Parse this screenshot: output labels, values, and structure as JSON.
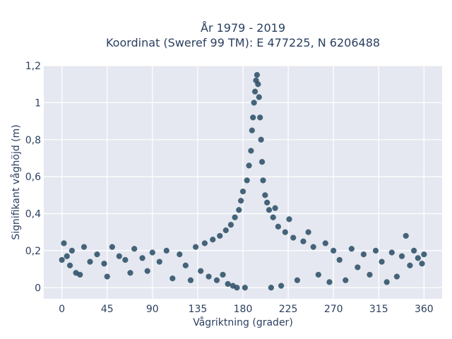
{
  "chart_data": {
    "type": "scatter",
    "title": "År 1979 - 2019",
    "subtitle": "Koordinat (Sweref 99 TM): E 477225, N 6206488",
    "xlabel": "Vågriktning (grader)",
    "ylabel": "Signifikant våghöjd (m)",
    "xlim": [
      -18,
      378
    ],
    "ylim": [
      -0.06,
      1.2
    ],
    "x_ticks": [
      0,
      45,
      90,
      135,
      180,
      225,
      270,
      315,
      360
    ],
    "y_ticks": [
      0,
      0.2,
      0.4,
      0.6,
      0.8,
      1,
      1.2
    ],
    "y_tick_labels": [
      "0",
      "0,2",
      "0,4",
      "0,6",
      "0,8",
      "1",
      "1,2"
    ],
    "grid": true,
    "legend": "none",
    "marker_color": "#2e5068",
    "plot_background": "#e5e8f0",
    "grid_color": "#ffffff",
    "series": [
      {
        "values": [
          {
            "x": 0,
            "y": 0.15
          },
          {
            "x": 2,
            "y": 0.24
          },
          {
            "x": 5,
            "y": 0.17
          },
          {
            "x": 8,
            "y": 0.12
          },
          {
            "x": 10,
            "y": 0.2
          },
          {
            "x": 14,
            "y": 0.08
          },
          {
            "x": 18,
            "y": 0.07
          },
          {
            "x": 22,
            "y": 0.22
          },
          {
            "x": 28,
            "y": 0.14
          },
          {
            "x": 35,
            "y": 0.18
          },
          {
            "x": 42,
            "y": 0.13
          },
          {
            "x": 45,
            "y": 0.06
          },
          {
            "x": 50,
            "y": 0.22
          },
          {
            "x": 57,
            "y": 0.17
          },
          {
            "x": 63,
            "y": 0.15
          },
          {
            "x": 68,
            "y": 0.08
          },
          {
            "x": 72,
            "y": 0.21
          },
          {
            "x": 80,
            "y": 0.16
          },
          {
            "x": 85,
            "y": 0.09
          },
          {
            "x": 90,
            "y": 0.19
          },
          {
            "x": 97,
            "y": 0.14
          },
          {
            "x": 104,
            "y": 0.2
          },
          {
            "x": 110,
            "y": 0.05
          },
          {
            "x": 117,
            "y": 0.18
          },
          {
            "x": 123,
            "y": 0.12
          },
          {
            "x": 128,
            "y": 0.04
          },
          {
            "x": 133,
            "y": 0.22
          },
          {
            "x": 138,
            "y": 0.09
          },
          {
            "x": 142,
            "y": 0.24
          },
          {
            "x": 146,
            "y": 0.06
          },
          {
            "x": 150,
            "y": 0.26
          },
          {
            "x": 154,
            "y": 0.04
          },
          {
            "x": 157,
            "y": 0.28
          },
          {
            "x": 160,
            "y": 0.07
          },
          {
            "x": 163,
            "y": 0.31
          },
          {
            "x": 165,
            "y": 0.02
          },
          {
            "x": 168,
            "y": 0.34
          },
          {
            "x": 170,
            "y": 0.01
          },
          {
            "x": 172,
            "y": 0.38
          },
          {
            "x": 174,
            "y": 0.0
          },
          {
            "x": 176,
            "y": 0.42
          },
          {
            "x": 178,
            "y": 0.47
          },
          {
            "x": 180,
            "y": 0.52
          },
          {
            "x": 182,
            "y": 0.0
          },
          {
            "x": 184,
            "y": 0.58
          },
          {
            "x": 186,
            "y": 0.66
          },
          {
            "x": 188,
            "y": 0.74
          },
          {
            "x": 189,
            "y": 0.85
          },
          {
            "x": 190,
            "y": 0.92
          },
          {
            "x": 191,
            "y": 1.0
          },
          {
            "x": 192,
            "y": 1.06
          },
          {
            "x": 193,
            "y": 1.12
          },
          {
            "x": 194,
            "y": 1.15
          },
          {
            "x": 195,
            "y": 1.1
          },
          {
            "x": 196,
            "y": 1.03
          },
          {
            "x": 197,
            "y": 0.92
          },
          {
            "x": 198,
            "y": 0.8
          },
          {
            "x": 199,
            "y": 0.68
          },
          {
            "x": 200,
            "y": 0.58
          },
          {
            "x": 202,
            "y": 0.5
          },
          {
            "x": 204,
            "y": 0.46
          },
          {
            "x": 206,
            "y": 0.42
          },
          {
            "x": 208,
            "y": 0.0
          },
          {
            "x": 210,
            "y": 0.38
          },
          {
            "x": 212,
            "y": 0.43
          },
          {
            "x": 215,
            "y": 0.33
          },
          {
            "x": 218,
            "y": 0.01
          },
          {
            "x": 222,
            "y": 0.3
          },
          {
            "x": 226,
            "y": 0.37
          },
          {
            "x": 230,
            "y": 0.27
          },
          {
            "x": 234,
            "y": 0.04
          },
          {
            "x": 240,
            "y": 0.25
          },
          {
            "x": 245,
            "y": 0.3
          },
          {
            "x": 250,
            "y": 0.22
          },
          {
            "x": 255,
            "y": 0.07
          },
          {
            "x": 262,
            "y": 0.24
          },
          {
            "x": 266,
            "y": 0.03
          },
          {
            "x": 270,
            "y": 0.2
          },
          {
            "x": 276,
            "y": 0.15
          },
          {
            "x": 282,
            "y": 0.04
          },
          {
            "x": 288,
            "y": 0.21
          },
          {
            "x": 294,
            "y": 0.11
          },
          {
            "x": 300,
            "y": 0.18
          },
          {
            "x": 306,
            "y": 0.07
          },
          {
            "x": 312,
            "y": 0.2
          },
          {
            "x": 318,
            "y": 0.14
          },
          {
            "x": 323,
            "y": 0.03
          },
          {
            "x": 328,
            "y": 0.19
          },
          {
            "x": 333,
            "y": 0.06
          },
          {
            "x": 338,
            "y": 0.17
          },
          {
            "x": 342,
            "y": 0.28
          },
          {
            "x": 346,
            "y": 0.12
          },
          {
            "x": 350,
            "y": 0.2
          },
          {
            "x": 354,
            "y": 0.16
          },
          {
            "x": 358,
            "y": 0.13
          },
          {
            "x": 360,
            "y": 0.18
          }
        ]
      }
    ]
  }
}
